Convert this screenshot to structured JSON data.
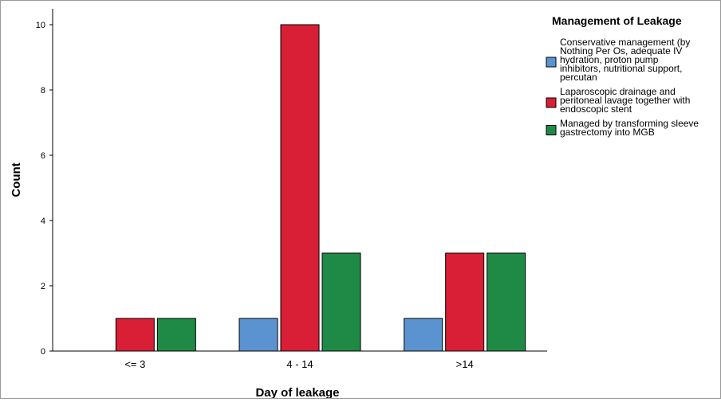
{
  "chart_data": {
    "type": "bar",
    "xlabel": "Day of leakage",
    "ylabel": "Count",
    "categories": [
      "<= 3",
      "4 - 14",
      ">14"
    ],
    "ylim": [
      0,
      10
    ],
    "yticks": [
      0,
      2,
      4,
      6,
      8,
      10
    ],
    "grid": false,
    "legend_position": "right",
    "legend_title": "Management of Leakage",
    "series": [
      {
        "name": "Conservative management (by Nothing Per Os, adequate IV hydration, proton pump inhibitors, nutritional support, percutan",
        "legend_lines": [
          "Conservative management (by",
          "Nothing Per Os, adequate IV",
          "hydration, proton pump",
          "inhibitors, nutritional support,",
          "percutan"
        ],
        "color": "#5b93d0",
        "values": [
          0,
          1,
          1
        ]
      },
      {
        "name": "Laparoscopic drainage and peritoneal lavage together with endoscopic stent",
        "legend_lines": [
          "Laparoscopic drainage and",
          "peritoneal lavage together with",
          "endoscopic stent"
        ],
        "color": "#d81f36",
        "values": [
          1,
          10,
          3
        ]
      },
      {
        "name": "Managed by transforming sleeve gastrectomy into MGB",
        "legend_lines": [
          "Managed by transforming sleeve",
          "gastrectomy into MGB"
        ],
        "color": "#1f8a45",
        "values": [
          1,
          3,
          3
        ]
      }
    ]
  }
}
